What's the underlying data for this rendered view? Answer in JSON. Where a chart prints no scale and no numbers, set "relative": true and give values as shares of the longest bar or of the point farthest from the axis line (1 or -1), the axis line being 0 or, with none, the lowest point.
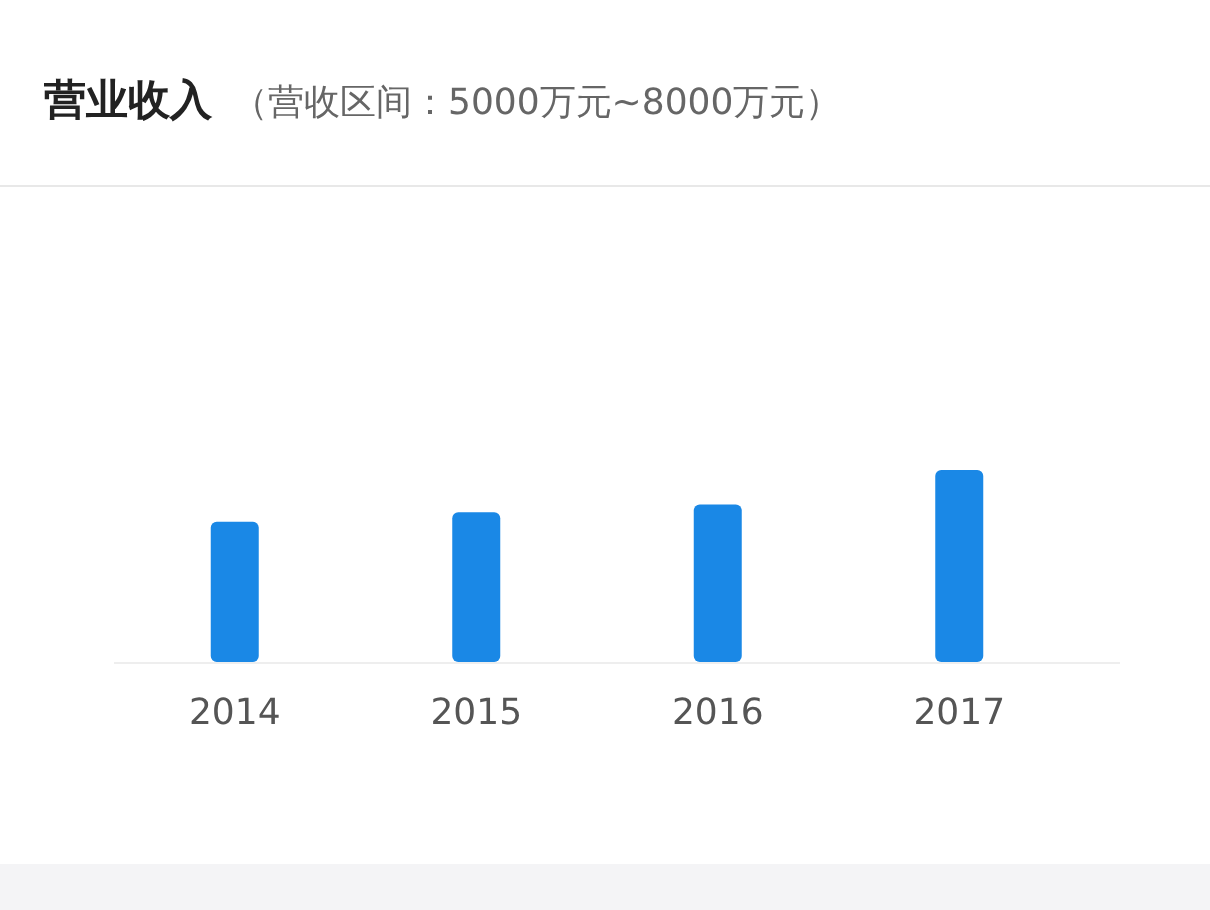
{
  "chart_data": {
    "type": "bar",
    "title": "营业收入",
    "subtitle": "（营收区间：5000万元~8000万元）",
    "categories": [
      "2014",
      "2015",
      "2016",
      "2017"
    ],
    "values": [
      0.73,
      0.78,
      0.82,
      1
    ],
    "color": "#1a88e6",
    "relative": true
  }
}
